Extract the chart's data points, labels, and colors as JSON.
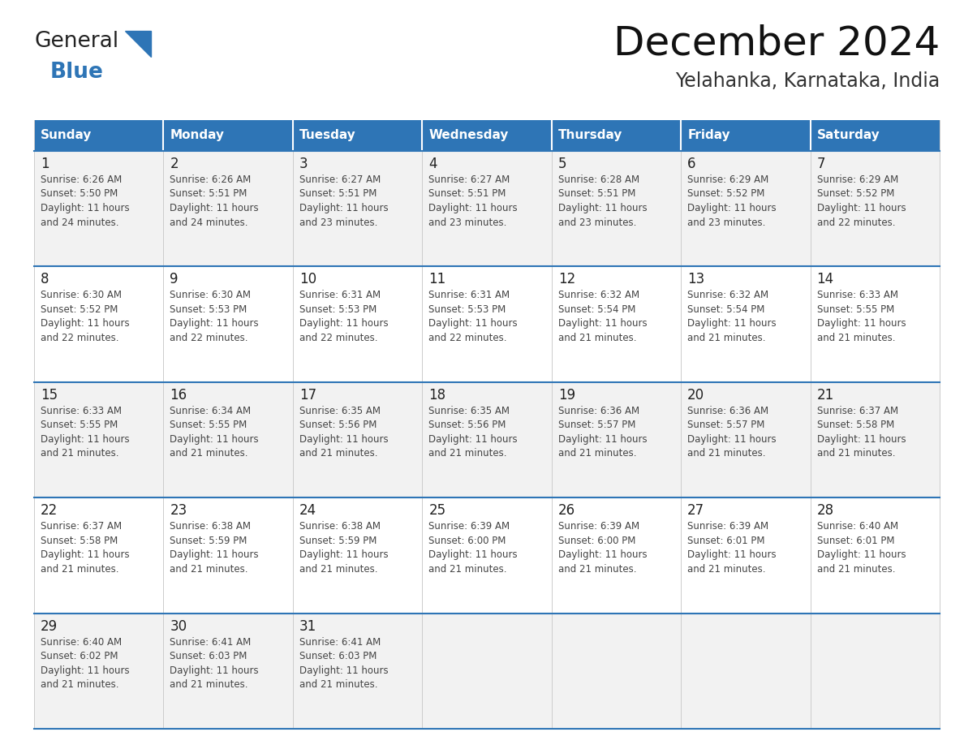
{
  "title": "December 2024",
  "subtitle": "Yelahanka, Karnataka, India",
  "header_color": "#2E75B6",
  "header_text_color": "#FFFFFF",
  "row_bg_odd": "#F2F2F2",
  "row_bg_even": "#FFFFFF",
  "separator_color": "#2E75B6",
  "cell_line_color": "#CCCCCC",
  "day_headers": [
    "Sunday",
    "Monday",
    "Tuesday",
    "Wednesday",
    "Thursday",
    "Friday",
    "Saturday"
  ],
  "title_fontsize": 36,
  "subtitle_fontsize": 17,
  "day_num_fontsize": 12,
  "cell_text_fontsize": 8.5,
  "header_fontsize": 11,
  "logo_general_color": "#222222",
  "logo_blue_color": "#2E75B6",
  "triangle_color": "#2E75B6",
  "calendar_data": [
    [
      {
        "day": 1,
        "sunrise": "6:26 AM",
        "sunset": "5:50 PM",
        "daylight": "11 hours and 24 minutes."
      },
      {
        "day": 2,
        "sunrise": "6:26 AM",
        "sunset": "5:51 PM",
        "daylight": "11 hours and 24 minutes."
      },
      {
        "day": 3,
        "sunrise": "6:27 AM",
        "sunset": "5:51 PM",
        "daylight": "11 hours and 23 minutes."
      },
      {
        "day": 4,
        "sunrise": "6:27 AM",
        "sunset": "5:51 PM",
        "daylight": "11 hours and 23 minutes."
      },
      {
        "day": 5,
        "sunrise": "6:28 AM",
        "sunset": "5:51 PM",
        "daylight": "11 hours and 23 minutes."
      },
      {
        "day": 6,
        "sunrise": "6:29 AM",
        "sunset": "5:52 PM",
        "daylight": "11 hours and 23 minutes."
      },
      {
        "day": 7,
        "sunrise": "6:29 AM",
        "sunset": "5:52 PM",
        "daylight": "11 hours and 22 minutes."
      }
    ],
    [
      {
        "day": 8,
        "sunrise": "6:30 AM",
        "sunset": "5:52 PM",
        "daylight": "11 hours and 22 minutes."
      },
      {
        "day": 9,
        "sunrise": "6:30 AM",
        "sunset": "5:53 PM",
        "daylight": "11 hours and 22 minutes."
      },
      {
        "day": 10,
        "sunrise": "6:31 AM",
        "sunset": "5:53 PM",
        "daylight": "11 hours and 22 minutes."
      },
      {
        "day": 11,
        "sunrise": "6:31 AM",
        "sunset": "5:53 PM",
        "daylight": "11 hours and 22 minutes."
      },
      {
        "day": 12,
        "sunrise": "6:32 AM",
        "sunset": "5:54 PM",
        "daylight": "11 hours and 21 minutes."
      },
      {
        "day": 13,
        "sunrise": "6:32 AM",
        "sunset": "5:54 PM",
        "daylight": "11 hours and 21 minutes."
      },
      {
        "day": 14,
        "sunrise": "6:33 AM",
        "sunset": "5:55 PM",
        "daylight": "11 hours and 21 minutes."
      }
    ],
    [
      {
        "day": 15,
        "sunrise": "6:33 AM",
        "sunset": "5:55 PM",
        "daylight": "11 hours and 21 minutes."
      },
      {
        "day": 16,
        "sunrise": "6:34 AM",
        "sunset": "5:55 PM",
        "daylight": "11 hours and 21 minutes."
      },
      {
        "day": 17,
        "sunrise": "6:35 AM",
        "sunset": "5:56 PM",
        "daylight": "11 hours and 21 minutes."
      },
      {
        "day": 18,
        "sunrise": "6:35 AM",
        "sunset": "5:56 PM",
        "daylight": "11 hours and 21 minutes."
      },
      {
        "day": 19,
        "sunrise": "6:36 AM",
        "sunset": "5:57 PM",
        "daylight": "11 hours and 21 minutes."
      },
      {
        "day": 20,
        "sunrise": "6:36 AM",
        "sunset": "5:57 PM",
        "daylight": "11 hours and 21 minutes."
      },
      {
        "day": 21,
        "sunrise": "6:37 AM",
        "sunset": "5:58 PM",
        "daylight": "11 hours and 21 minutes."
      }
    ],
    [
      {
        "day": 22,
        "sunrise": "6:37 AM",
        "sunset": "5:58 PM",
        "daylight": "11 hours and 21 minutes."
      },
      {
        "day": 23,
        "sunrise": "6:38 AM",
        "sunset": "5:59 PM",
        "daylight": "11 hours and 21 minutes."
      },
      {
        "day": 24,
        "sunrise": "6:38 AM",
        "sunset": "5:59 PM",
        "daylight": "11 hours and 21 minutes."
      },
      {
        "day": 25,
        "sunrise": "6:39 AM",
        "sunset": "6:00 PM",
        "daylight": "11 hours and 21 minutes."
      },
      {
        "day": 26,
        "sunrise": "6:39 AM",
        "sunset": "6:00 PM",
        "daylight": "11 hours and 21 minutes."
      },
      {
        "day": 27,
        "sunrise": "6:39 AM",
        "sunset": "6:01 PM",
        "daylight": "11 hours and 21 minutes."
      },
      {
        "day": 28,
        "sunrise": "6:40 AM",
        "sunset": "6:01 PM",
        "daylight": "11 hours and 21 minutes."
      }
    ],
    [
      {
        "day": 29,
        "sunrise": "6:40 AM",
        "sunset": "6:02 PM",
        "daylight": "11 hours and 21 minutes."
      },
      {
        "day": 30,
        "sunrise": "6:41 AM",
        "sunset": "6:03 PM",
        "daylight": "11 hours and 21 minutes."
      },
      {
        "day": 31,
        "sunrise": "6:41 AM",
        "sunset": "6:03 PM",
        "daylight": "11 hours and 21 minutes."
      },
      null,
      null,
      null,
      null
    ]
  ]
}
